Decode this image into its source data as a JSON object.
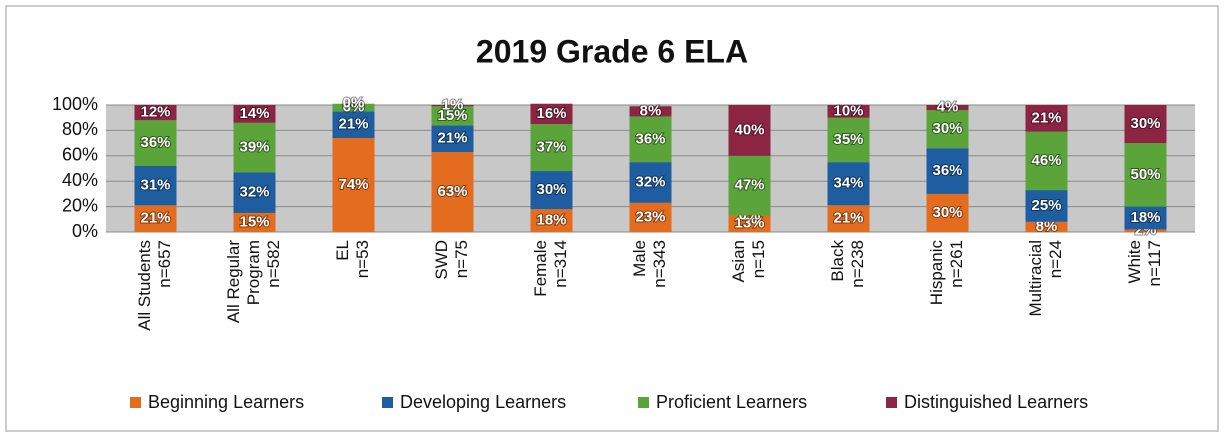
{
  "chart_data": {
    "type": "stacked_bar",
    "title": "2019 Grade 6 ELA",
    "categories": [
      [
        "All Students",
        "n=657"
      ],
      [
        "All Regular",
        "Program",
        "n=582"
      ],
      [
        "EL",
        "n=53"
      ],
      [
        "SWD",
        "n=75"
      ],
      [
        "Female",
        "n=314"
      ],
      [
        "Male",
        "n=343"
      ],
      [
        "Asian",
        "n=15"
      ],
      [
        "Black",
        "n=238"
      ],
      [
        "Hispanic",
        "n=261"
      ],
      [
        "Multiracial",
        "n=24"
      ],
      [
        "White",
        "n=117"
      ]
    ],
    "series": [
      {
        "name": "Beginning Learners",
        "color": "#e46c1e",
        "values": [
          21,
          15,
          74,
          63,
          18,
          23,
          13,
          21,
          30,
          8,
          2
        ],
        "value_labels": [
          "21%",
          "15%",
          "74%",
          "63%",
          "18%",
          "23%",
          "13%",
          "21%",
          "30%",
          "8%",
          "2%"
        ]
      },
      {
        "name": "Developing Learners",
        "color": "#1e5ea0",
        "values": [
          31,
          32,
          21,
          21,
          30,
          32,
          0,
          34,
          36,
          25,
          18
        ],
        "value_labels": [
          "31%",
          "32%",
          "21%",
          "21%",
          "30%",
          "32%",
          "0%",
          "34%",
          "36%",
          "25%",
          "18%"
        ]
      },
      {
        "name": "Proficient Learners",
        "color": "#5aa43a",
        "values": [
          36,
          39,
          6,
          15,
          37,
          36,
          47,
          35,
          30,
          46,
          50
        ],
        "value_labels": [
          "36%",
          "39%",
          "6%",
          "15%",
          "37%",
          "36%",
          "47%",
          "35%",
          "30%",
          "46%",
          "50%"
        ]
      },
      {
        "name": "Distinguished Learners",
        "color": "#8c2444",
        "values": [
          12,
          14,
          0,
          1,
          16,
          8,
          40,
          10,
          4,
          21,
          30
        ],
        "value_labels": [
          "12%",
          "14%",
          "0%",
          "1%",
          "16%",
          "8%",
          "40%",
          "10%",
          "4%",
          "21%",
          "30%"
        ]
      }
    ],
    "ylim": [
      0,
      100
    ],
    "yticks": [
      {
        "value": 0,
        "label": "0%"
      },
      {
        "value": 20,
        "label": "20%"
      },
      {
        "value": 40,
        "label": "40%"
      },
      {
        "value": 60,
        "label": "60%"
      },
      {
        "value": 80,
        "label": "80%"
      },
      {
        "value": 100,
        "label": "100%"
      }
    ],
    "grid": true,
    "legend": "bottom"
  }
}
